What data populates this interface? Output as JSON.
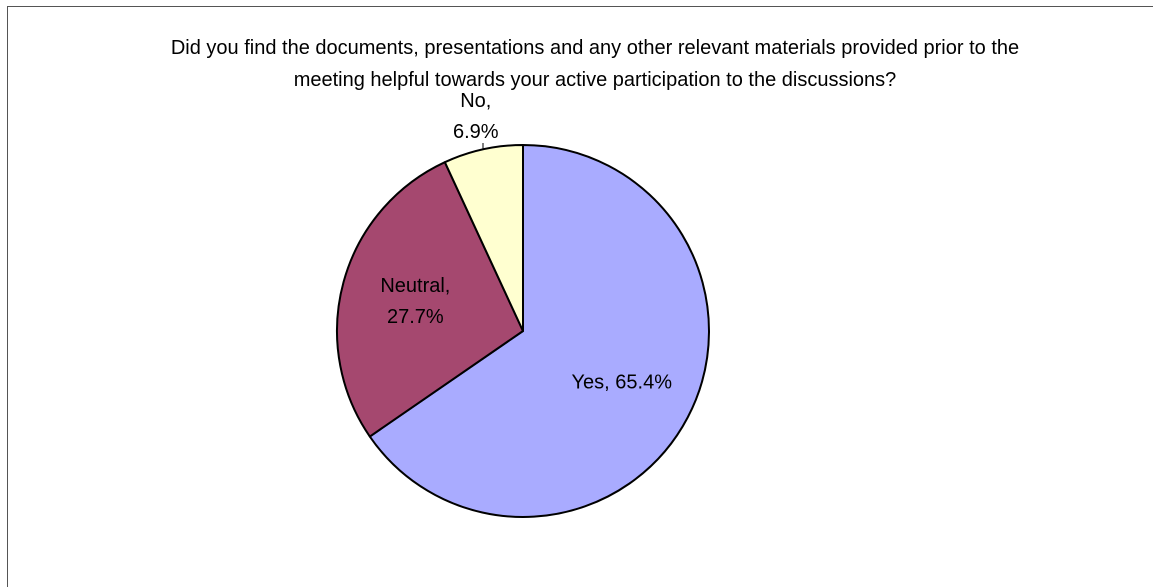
{
  "chart_data": {
    "type": "pie",
    "title": "Did you find the documents, presentations and any other relevant materials provided prior to the meeting helpful towards your active participation to the discussions?",
    "values": [
      65.4,
      27.7,
      6.9
    ],
    "value_labels": [
      "Yes, 65.4%",
      "Neutral, 27.7%",
      "No, 6.9%"
    ],
    "colors": [
      "#a9abff",
      "#a5486f",
      "#ffffd0"
    ]
  }
}
